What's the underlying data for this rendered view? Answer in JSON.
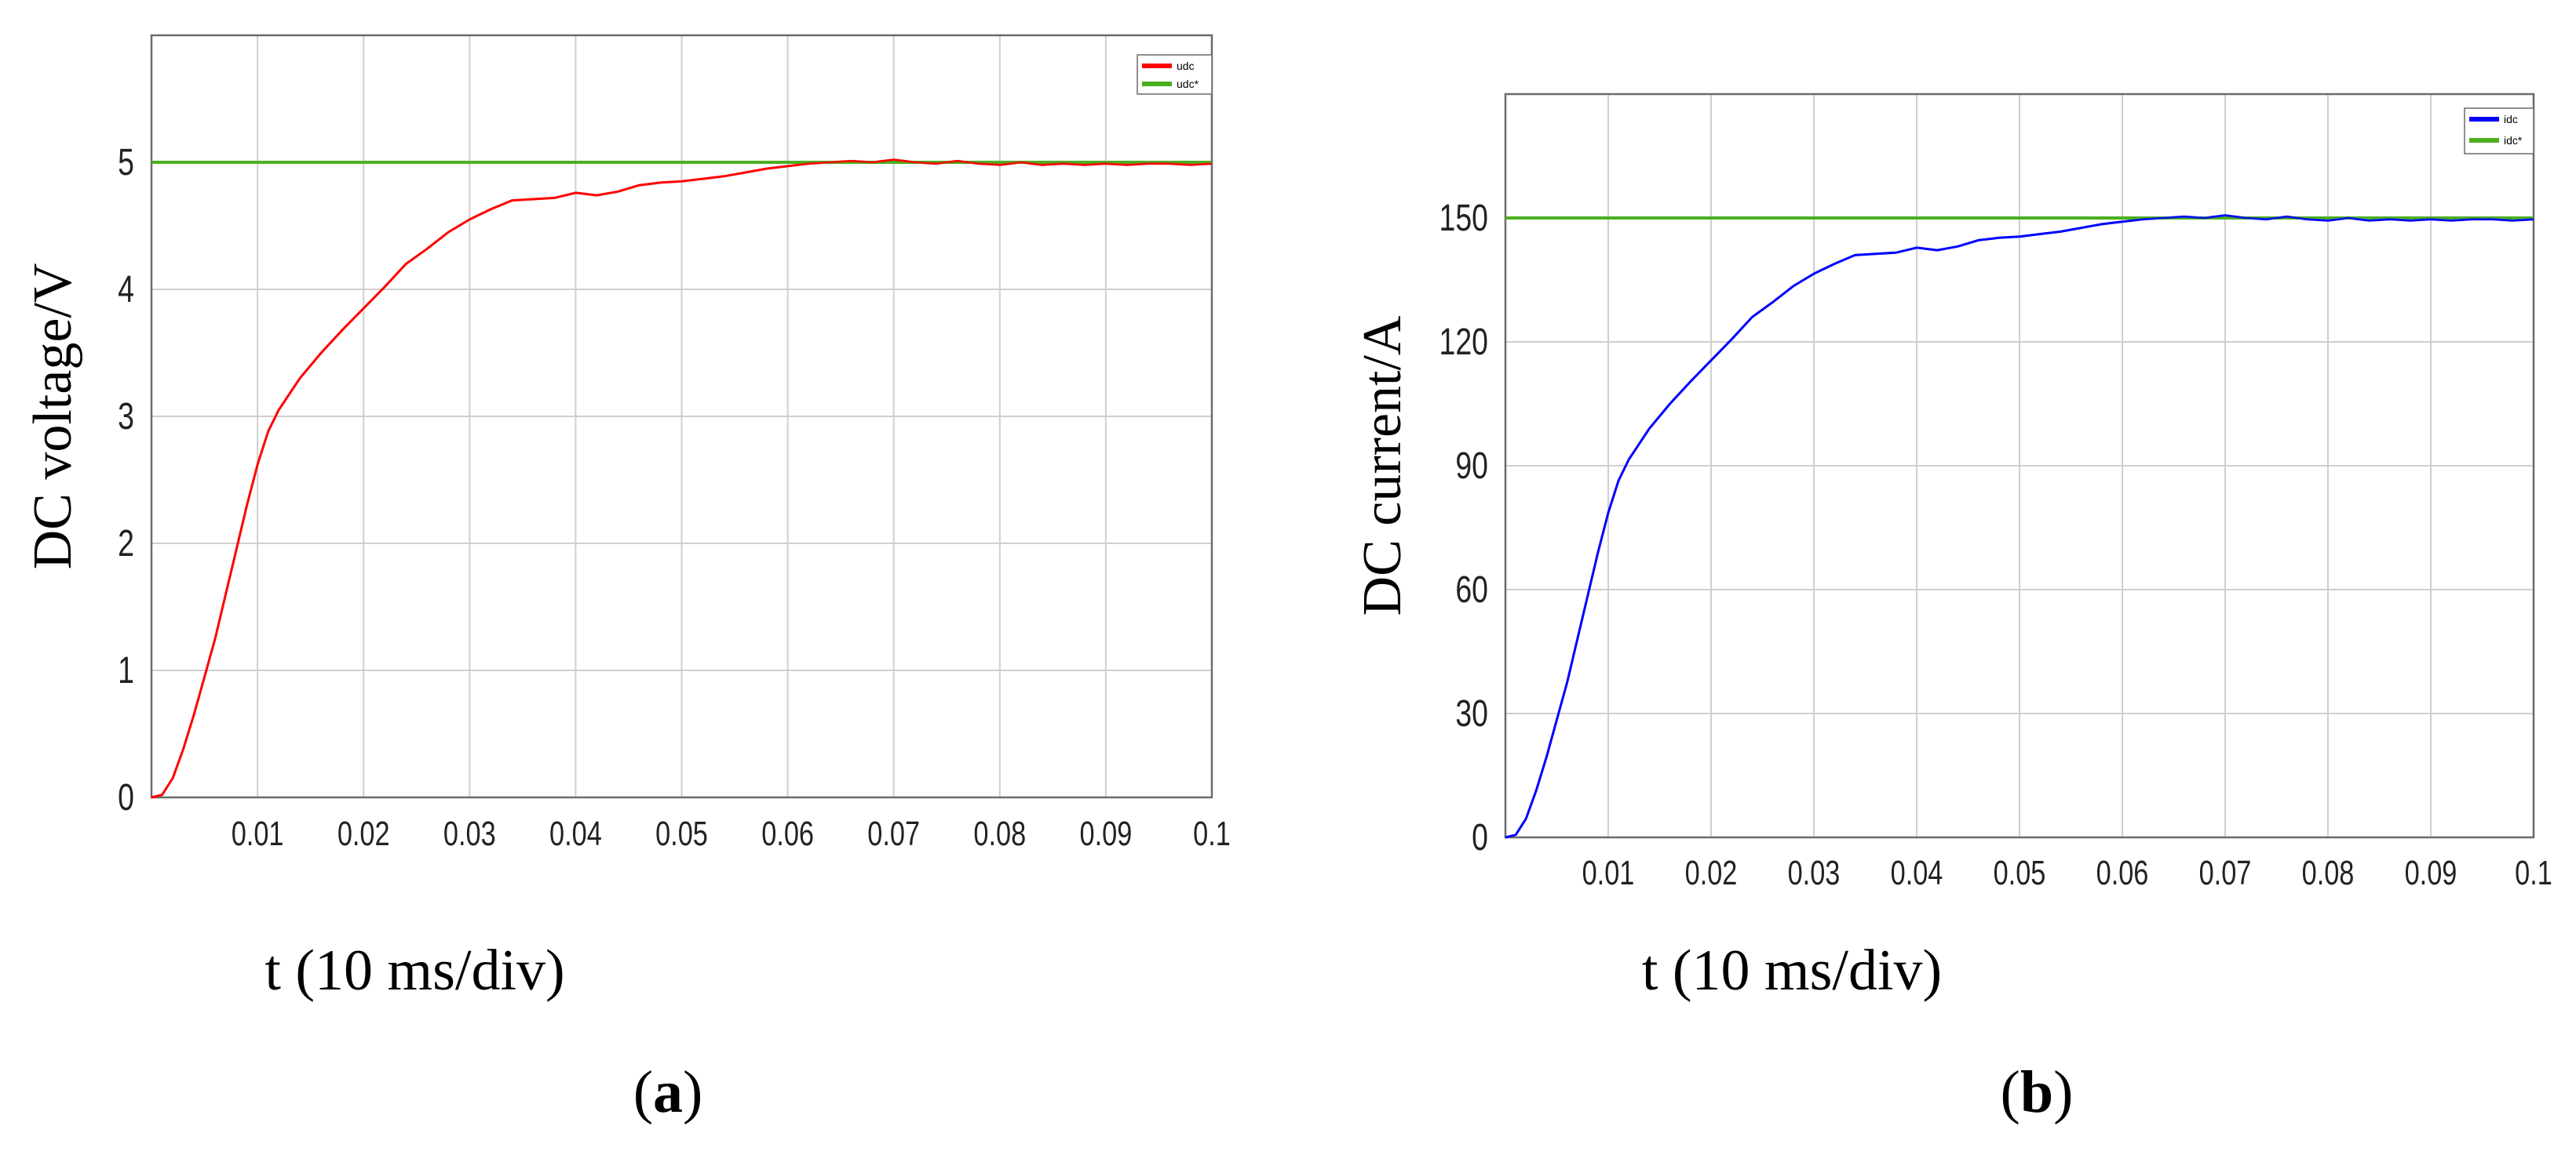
{
  "chart_data": [
    {
      "type": "line",
      "panel_label": "a",
      "xlabel": "t (10 ms/div)",
      "ylabel": "DC voltage/V",
      "xlim": [
        0,
        0.1
      ],
      "ylim": [
        0,
        6
      ],
      "x_ticks": [
        0.01,
        0.02,
        0.03,
        0.04,
        0.05,
        0.06,
        0.07,
        0.08,
        0.09,
        0.1
      ],
      "x_tick_labels": [
        "0.01",
        "0.02",
        "0.03",
        "0.04",
        "0.05",
        "0.06",
        "0.07",
        "0.08",
        "0.09",
        "0.1"
      ],
      "y_ticks": [
        0,
        1,
        2,
        3,
        4,
        5
      ],
      "y_tick_labels": [
        "0",
        "1",
        "2",
        "3",
        "4",
        "5"
      ],
      "grid": true,
      "legend_position": "top-right",
      "series": [
        {
          "name": "udc",
          "color": "#ff0000",
          "x": [
            0,
            0.001,
            0.002,
            0.003,
            0.004,
            0.005,
            0.006,
            0.007,
            0.008,
            0.009,
            0.01,
            0.011,
            0.012,
            0.014,
            0.016,
            0.018,
            0.02,
            0.022,
            0.024,
            0.026,
            0.028,
            0.03,
            0.032,
            0.034,
            0.036,
            0.038,
            0.04,
            0.042,
            0.044,
            0.046,
            0.048,
            0.05,
            0.052,
            0.054,
            0.056,
            0.058,
            0.06,
            0.062,
            0.064,
            0.066,
            0.068,
            0.07,
            0.072,
            0.074,
            0.076,
            0.078,
            0.08,
            0.082,
            0.084,
            0.086,
            0.088,
            0.09,
            0.092,
            0.094,
            0.096,
            0.098,
            0.1
          ],
          "values": [
            0,
            0.02,
            0.15,
            0.38,
            0.65,
            0.95,
            1.25,
            1.6,
            1.95,
            2.3,
            2.62,
            2.88,
            3.05,
            3.3,
            3.5,
            3.68,
            3.85,
            4.02,
            4.2,
            4.32,
            4.45,
            4.55,
            4.63,
            4.7,
            4.71,
            4.72,
            4.76,
            4.74,
            4.77,
            4.82,
            4.84,
            4.85,
            4.87,
            4.89,
            4.92,
            4.95,
            4.97,
            4.99,
            5.0,
            5.01,
            5.0,
            5.02,
            5.0,
            4.99,
            5.01,
            4.99,
            4.98,
            5.0,
            4.98,
            4.99,
            4.98,
            4.99,
            4.98,
            4.99,
            4.99,
            4.98,
            4.99
          ]
        },
        {
          "name": "udc*",
          "color": "#4caf20",
          "x": [
            0,
            0.1
          ],
          "values": [
            5,
            5
          ]
        }
      ]
    },
    {
      "type": "line",
      "panel_label": "b",
      "xlabel": "t (10 ms/div)",
      "ylabel": "DC current/A",
      "xlim": [
        0,
        0.1
      ],
      "ylim": [
        0,
        180
      ],
      "x_ticks": [
        0.01,
        0.02,
        0.03,
        0.04,
        0.05,
        0.06,
        0.07,
        0.08,
        0.09,
        0.1
      ],
      "x_tick_labels": [
        "0.01",
        "0.02",
        "0.03",
        "0.04",
        "0.05",
        "0.06",
        "0.07",
        "0.08",
        "0.09",
        "0.1"
      ],
      "y_ticks": [
        0,
        30,
        60,
        90,
        120,
        150
      ],
      "y_tick_labels": [
        "0",
        "30",
        "60",
        "90",
        "120",
        "150"
      ],
      "grid": true,
      "legend_position": "top-right",
      "series": [
        {
          "name": "idc",
          "color": "#0000ff",
          "x": [
            0,
            0.001,
            0.002,
            0.003,
            0.004,
            0.005,
            0.006,
            0.007,
            0.008,
            0.009,
            0.01,
            0.011,
            0.012,
            0.014,
            0.016,
            0.018,
            0.02,
            0.022,
            0.024,
            0.026,
            0.028,
            0.03,
            0.032,
            0.034,
            0.036,
            0.038,
            0.04,
            0.042,
            0.044,
            0.046,
            0.048,
            0.05,
            0.052,
            0.054,
            0.056,
            0.058,
            0.06,
            0.062,
            0.064,
            0.066,
            0.068,
            0.07,
            0.072,
            0.074,
            0.076,
            0.078,
            0.08,
            0.082,
            0.084,
            0.086,
            0.088,
            0.09,
            0.092,
            0.094,
            0.096,
            0.098,
            0.1
          ],
          "values": [
            0,
            0.6,
            4.5,
            11.4,
            19.5,
            28.5,
            37.5,
            48,
            58.5,
            69,
            78.6,
            86.4,
            91.5,
            99,
            105,
            110.4,
            115.5,
            120.6,
            126,
            129.6,
            133.5,
            136.5,
            138.9,
            141,
            141.3,
            141.6,
            142.8,
            142.2,
            143.1,
            144.6,
            145.2,
            145.5,
            146.1,
            146.7,
            147.6,
            148.5,
            149.1,
            149.7,
            150,
            150.3,
            150,
            150.6,
            150,
            149.7,
            150.3,
            149.7,
            149.4,
            150,
            149.4,
            149.7,
            149.4,
            149.7,
            149.4,
            149.7,
            149.7,
            149.4,
            149.7
          ]
        },
        {
          "name": "idc*",
          "color": "#4caf20",
          "x": [
            0,
            0.1
          ],
          "values": [
            150,
            150
          ]
        }
      ]
    }
  ]
}
